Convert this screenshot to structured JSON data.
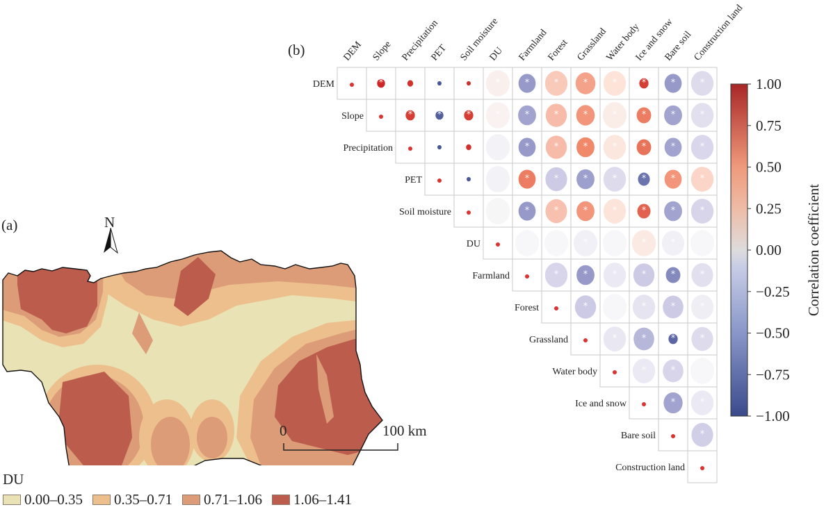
{
  "panel_a": {
    "label": "(a)",
    "north_label": "N",
    "scale_start": "0",
    "scale_end": "100 km",
    "legend_title": "DU",
    "legend": [
      {
        "label": "0.00–0.35",
        "color": "#e8e2b4"
      },
      {
        "label": "0.35–0.71",
        "color": "#ecbf8c"
      },
      {
        "label": "0.71–1.06",
        "color": "#dc9c78"
      },
      {
        "label": "1.06–1.41",
        "color": "#bb5c4c"
      }
    ]
  },
  "panel_b": {
    "label": "(b)"
  },
  "chart_data": {
    "type": "heatmap",
    "title": "",
    "variables": [
      "DEM",
      "Slope",
      "Precipitation",
      "PET",
      "Soil moisture",
      "DU",
      "Farmland",
      "Forest",
      "Grassland",
      "Water body",
      "Ice and snow",
      "Bare soil",
      "Construction land"
    ],
    "note": "Upper-triangular correlation matrix; circle color = correlation coefficient, '*' marks significance; diagonal shown as small red dot",
    "colorbar": {
      "label": "Correlation coefficient",
      "range": [
        -1.0,
        1.0
      ],
      "ticks": [
        "1.00",
        "0.75",
        "0.50",
        "0.25",
        "0.00",
        "−0.25",
        "−0.50",
        "−0.75",
        "−1.00"
      ],
      "colors": [
        "#3b4cc0",
        "#dddddd",
        "#b40426"
      ]
    },
    "matrix": [
      [
        1,
        0.95,
        0.9,
        -0.9,
        0.92,
        0.05,
        -0.45,
        0.25,
        0.4,
        0.15,
        0.85,
        -0.45,
        -0.12
      ],
      [
        null,
        1,
        0.85,
        -0.85,
        0.85,
        0.04,
        -0.4,
        0.3,
        0.45,
        0.08,
        0.55,
        -0.4,
        -0.1
      ],
      [
        null,
        null,
        1,
        -0.9,
        0.9,
        -0.02,
        -0.45,
        0.3,
        0.5,
        0.12,
        0.6,
        -0.4,
        -0.14
      ],
      [
        null,
        null,
        null,
        1,
        -0.9,
        -0.02,
        0.55,
        -0.2,
        -0.42,
        -0.12,
        -0.7,
        0.45,
        0.2
      ],
      [
        null,
        null,
        null,
        null,
        1,
        0.01,
        -0.45,
        0.28,
        0.45,
        0.14,
        0.68,
        -0.4,
        -0.15
      ],
      [
        null,
        null,
        null,
        null,
        null,
        1,
        0.0,
        0.0,
        -0.03,
        0.0,
        0.1,
        -0.03,
        0.0
      ],
      [
        null,
        null,
        null,
        null,
        null,
        null,
        1,
        -0.15,
        -0.45,
        -0.06,
        -0.2,
        -0.55,
        -0.1
      ],
      [
        null,
        null,
        null,
        null,
        null,
        null,
        null,
        1,
        -0.2,
        0.0,
        -0.08,
        -0.2,
        -0.04
      ],
      [
        null,
        null,
        null,
        null,
        null,
        null,
        null,
        null,
        1,
        -0.07,
        -0.3,
        -0.8,
        -0.12
      ],
      [
        null,
        null,
        null,
        null,
        null,
        null,
        null,
        null,
        null,
        1,
        -0.06,
        -0.15,
        0.0
      ],
      [
        null,
        null,
        null,
        null,
        null,
        null,
        null,
        null,
        null,
        null,
        1,
        -0.4,
        -0.06
      ],
      [
        null,
        null,
        null,
        null,
        null,
        null,
        null,
        null,
        null,
        null,
        null,
        1,
        -0.18
      ],
      [
        null,
        null,
        null,
        null,
        null,
        null,
        null,
        null,
        null,
        null,
        null,
        null,
        1
      ]
    ],
    "significant": [
      [
        false,
        true,
        false,
        false,
        false,
        true,
        true,
        true,
        true,
        true,
        true,
        true,
        true
      ],
      [
        null,
        false,
        true,
        true,
        true,
        true,
        true,
        true,
        true,
        true,
        true,
        true,
        true
      ],
      [
        null,
        null,
        false,
        false,
        false,
        false,
        true,
        true,
        true,
        true,
        true,
        true,
        true
      ],
      [
        null,
        null,
        null,
        false,
        false,
        false,
        true,
        true,
        true,
        true,
        true,
        true,
        true
      ],
      [
        null,
        null,
        null,
        null,
        false,
        false,
        true,
        true,
        true,
        true,
        true,
        true,
        true
      ],
      [
        null,
        null,
        null,
        null,
        null,
        false,
        false,
        false,
        true,
        false,
        true,
        true,
        false
      ],
      [
        null,
        null,
        null,
        null,
        null,
        null,
        false,
        true,
        true,
        true,
        true,
        true,
        true
      ],
      [
        null,
        null,
        null,
        null,
        null,
        null,
        null,
        false,
        true,
        false,
        true,
        true,
        true
      ],
      [
        null,
        null,
        null,
        null,
        null,
        null,
        null,
        null,
        false,
        true,
        true,
        true,
        true
      ],
      [
        null,
        null,
        null,
        null,
        null,
        null,
        null,
        null,
        null,
        false,
        true,
        true,
        false
      ],
      [
        null,
        null,
        null,
        null,
        null,
        null,
        null,
        null,
        null,
        null,
        false,
        true,
        true
      ],
      [
        null,
        null,
        null,
        null,
        null,
        null,
        null,
        null,
        null,
        null,
        null,
        false,
        true
      ],
      [
        null,
        null,
        null,
        null,
        null,
        null,
        null,
        null,
        null,
        null,
        null,
        null,
        false
      ]
    ],
    "circle_size": [
      [
        0.15,
        0.3,
        0.22,
        0.15,
        0.15,
        0.9,
        0.65,
        0.85,
        0.75,
        0.85,
        0.35,
        0.65,
        0.85
      ],
      [
        null,
        0.15,
        0.35,
        0.3,
        0.35,
        0.9,
        0.68,
        0.8,
        0.7,
        0.9,
        0.55,
        0.68,
        0.85
      ],
      [
        null,
        null,
        0.15,
        0.15,
        0.2,
        0.9,
        0.65,
        0.8,
        0.68,
        0.85,
        0.55,
        0.65,
        0.85
      ],
      [
        null,
        null,
        null,
        0.15,
        0.15,
        0.9,
        0.65,
        0.82,
        0.68,
        0.85,
        0.45,
        0.65,
        0.85
      ],
      [
        null,
        null,
        null,
        null,
        0.15,
        0.9,
        0.65,
        0.82,
        0.68,
        0.85,
        0.5,
        0.68,
        0.85
      ],
      [
        null,
        null,
        null,
        null,
        null,
        0.15,
        0.9,
        0.9,
        0.9,
        0.9,
        0.9,
        0.85,
        0.9
      ],
      [
        null,
        null,
        null,
        null,
        null,
        null,
        0.15,
        0.85,
        0.68,
        0.85,
        0.8,
        0.55,
        0.82
      ],
      [
        null,
        null,
        null,
        null,
        null,
        null,
        null,
        0.15,
        0.8,
        0.9,
        0.85,
        0.78,
        0.85
      ],
      [
        null,
        null,
        null,
        null,
        null,
        null,
        null,
        null,
        0.15,
        0.85,
        0.78,
        0.35,
        0.82
      ],
      [
        null,
        null,
        null,
        null,
        null,
        null,
        null,
        null,
        null,
        0.15,
        0.85,
        0.78,
        0.9
      ],
      [
        null,
        null,
        null,
        null,
        null,
        null,
        null,
        null,
        null,
        null,
        0.15,
        0.72,
        0.85
      ],
      [
        null,
        null,
        null,
        null,
        null,
        null,
        null,
        null,
        null,
        null,
        null,
        0.15,
        0.82
      ],
      [
        null,
        null,
        null,
        null,
        null,
        null,
        null,
        null,
        null,
        null,
        null,
        null,
        0.15
      ]
    ]
  }
}
